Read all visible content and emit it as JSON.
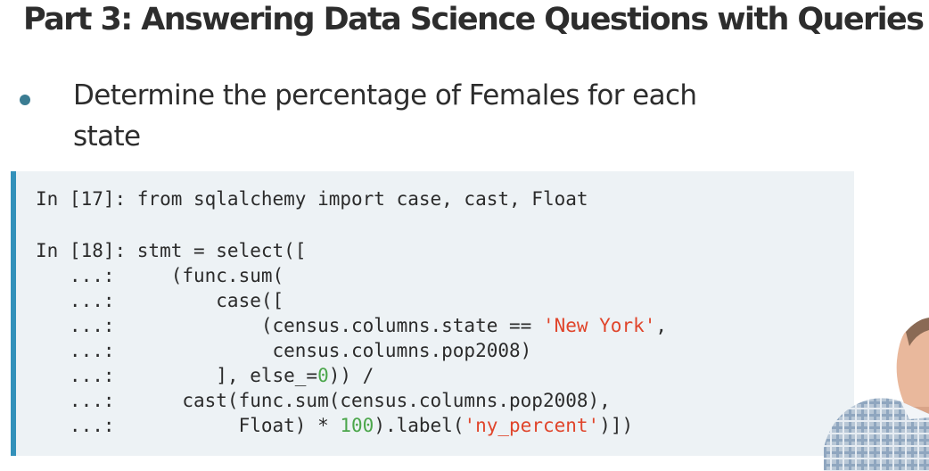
{
  "slide": {
    "title": "Part 3: Answering Data Science Questions with Queries",
    "bullet": "Determine the percentage of Females for each state"
  },
  "code": {
    "line1": "In [17]: from sqlalchemy import case, cast, Float",
    "line2": "In [18]: stmt = select([",
    "line3": "   ...:     (func.sum(",
    "line4": "   ...:         case([",
    "line5_pre": "   ...:             (census.columns.state == ",
    "line5_str": "'New York'",
    "line5_post": ",",
    "line6": "   ...:              census.columns.pop2008)",
    "line7_pre": "   ...:         ], else_=",
    "line7_num": "0",
    "line7_post": ")) /",
    "line8": "   ...:      cast(func.sum(census.columns.pop2008),",
    "line9_pre": "   ...:           Float) * ",
    "line9_num": "100",
    "line9_mid": ").label(",
    "line9_str": "'ny_percent'",
    "line9_post": ")])"
  },
  "colors": {
    "accent": "#3391ba",
    "code_background": "#edf2f5",
    "string": "#e0452b",
    "number": "#4ba64b",
    "bullet": "#3b7c92"
  },
  "icons": {
    "bullet": "bullet-dot",
    "presenter": "presenter-video-thumbnail"
  }
}
